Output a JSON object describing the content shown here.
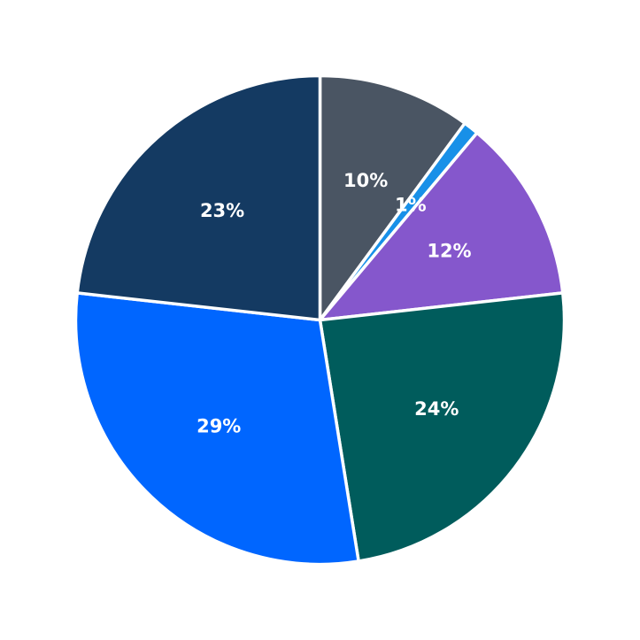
{
  "chart_data": {
    "type": "pie",
    "title": "",
    "start_angle_deg": 90,
    "direction": "clockwise",
    "slice_border_color": "#ffffff",
    "label_color": "#ffffff",
    "slices": [
      {
        "value": 10,
        "label": "10%",
        "color": "#4a5563"
      },
      {
        "value": 1,
        "label": "1%",
        "color": "#1890e8"
      },
      {
        "value": 12,
        "label": "12%",
        "color": "#8557cc"
      },
      {
        "value": 24,
        "label": "24%",
        "color": "#005c5c"
      },
      {
        "value": 29,
        "label": "29%",
        "color": "#0066ff"
      },
      {
        "value": 23,
        "label": "23%",
        "color": "#143a62"
      }
    ]
  }
}
